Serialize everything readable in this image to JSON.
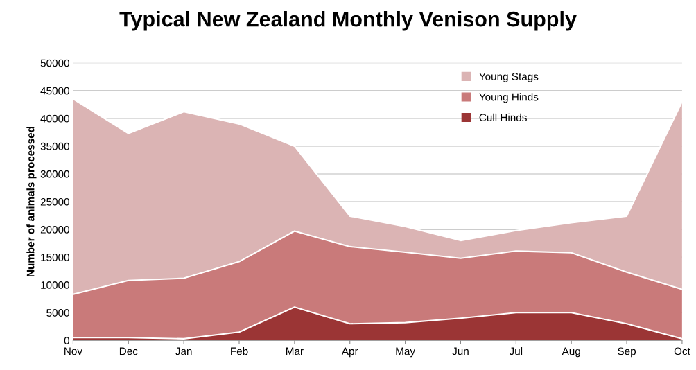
{
  "chart_data": {
    "type": "area",
    "title": "Typical New Zealand Monthly Venison Supply",
    "ylabel": "Number of animals processed",
    "categories": [
      "Nov",
      "Dec",
      "Jan",
      "Feb",
      "Mar",
      "Apr",
      "May",
      "Jun",
      "Jul",
      "Aug",
      "Sep",
      "Oct"
    ],
    "stacked": true,
    "series": [
      {
        "name": "Cull Hinds",
        "color": "#9b3535",
        "values": [
          500,
          500,
          300,
          1500,
          6000,
          3000,
          3200,
          4000,
          5000,
          5000,
          3000,
          300
        ]
      },
      {
        "name": "Young Hinds",
        "color": "#c97a7a",
        "values": [
          7800,
          10300,
          10900,
          12700,
          13700,
          13900,
          12700,
          10800,
          11100,
          10800,
          9300,
          8900
        ]
      },
      {
        "name": "Young Stags",
        "color": "#dbb4b4",
        "values": [
          35200,
          26500,
          30000,
          24800,
          15300,
          5500,
          4600,
          3200,
          3700,
          5400,
          10100,
          33800
        ]
      }
    ],
    "ylim": [
      0,
      50000
    ],
    "yticks": [
      0,
      5000,
      10000,
      15000,
      20000,
      25000,
      30000,
      35000,
      40000,
      45000,
      50000
    ],
    "grid": "y",
    "legend": "top right"
  }
}
